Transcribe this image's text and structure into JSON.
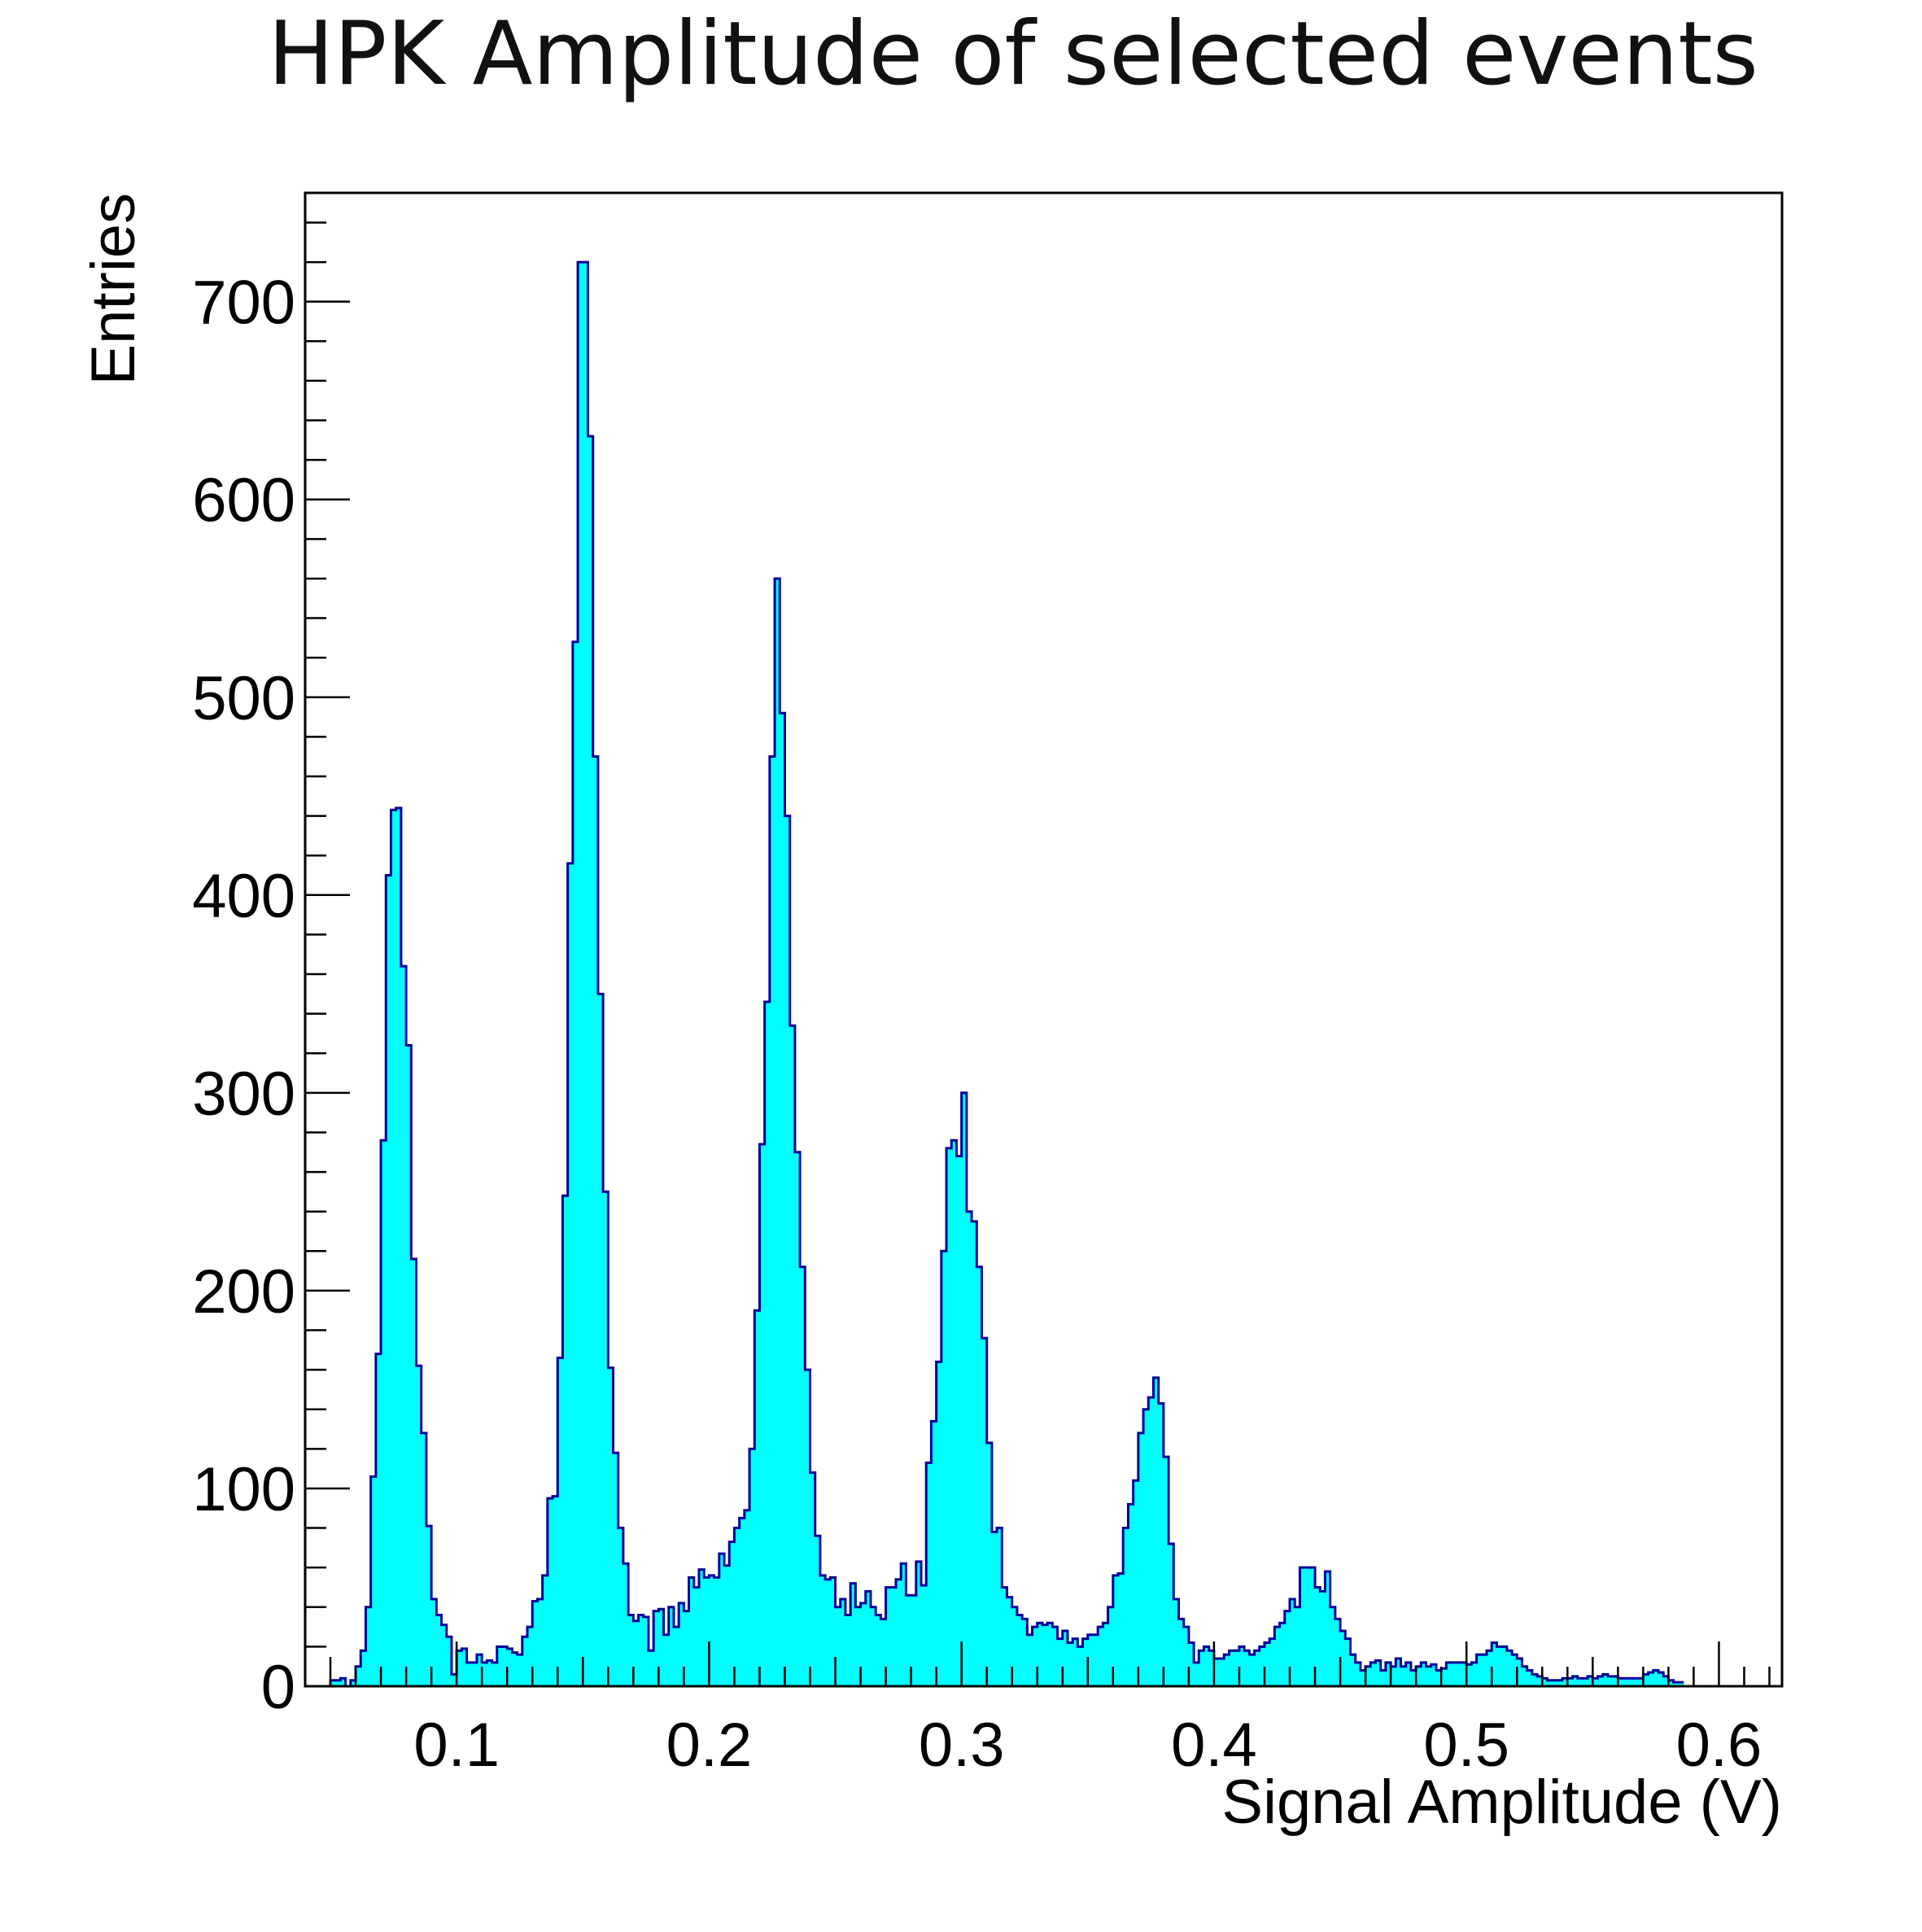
{
  "chart_data": {
    "type": "bar",
    "title": "HPK Amplitude of selected events",
    "xlabel": "Signal Amplitude (V)",
    "ylabel": "Entries",
    "xlim": [
      0.04,
      0.625
    ],
    "ylim": [
      0,
      755
    ],
    "x_ticks": [
      0.1,
      0.2,
      0.3,
      0.4,
      0.5,
      0.6
    ],
    "x_tick_labels": [
      "0.1",
      "0.2",
      "0.3",
      "0.4",
      "0.5",
      "0.6"
    ],
    "y_ticks": [
      0,
      100,
      200,
      300,
      400,
      500,
      600,
      700
    ],
    "y_tick_labels": [
      "0",
      "100",
      "200",
      "300",
      "400",
      "500",
      "600",
      "700"
    ],
    "grid": false,
    "legend": "none",
    "fill_color": "#00FFFF",
    "line_color": "#000099",
    "bin_start": 0.04,
    "bin_width": 0.002,
    "values": [
      0,
      0,
      0,
      0,
      0,
      3,
      3,
      4,
      0,
      3,
      10,
      18,
      40,
      106,
      168,
      276,
      410,
      443,
      444,
      364,
      324,
      216,
      162,
      128,
      81,
      44,
      36,
      31,
      25,
      6,
      18,
      19,
      12,
      12,
      16,
      12,
      13,
      12,
      20,
      20,
      19,
      17,
      16,
      25,
      30,
      43,
      44,
      56,
      95,
      96,
      166,
      248,
      416,
      528,
      720,
      720,
      632,
      470,
      350,
      250,
      161,
      118,
      80,
      62,
      36,
      33,
      36,
      35,
      18,
      38,
      39,
      26,
      40,
      30,
      42,
      38,
      55,
      50,
      59,
      55,
      56,
      55,
      67,
      61,
      73,
      80,
      85,
      89,
      120,
      190,
      274,
      346,
      470,
      560,
      492,
      440,
      334,
      270,
      212,
      160,
      108,
      76,
      56,
      54,
      55,
      40,
      44,
      36,
      52,
      40,
      42,
      48,
      40,
      36,
      34,
      50,
      50,
      54,
      62,
      46,
      46,
      63,
      51,
      113,
      134,
      164,
      220,
      272,
      276,
      268,
      300,
      240,
      235,
      212,
      176,
      123,
      78,
      80,
      50,
      45,
      40,
      36,
      34,
      26,
      30,
      32,
      31,
      32,
      30,
      24,
      28,
      22,
      24,
      20,
      24,
      26,
      26,
      30,
      32,
      40,
      56,
      57,
      80,
      92,
      104,
      128,
      140,
      146,
      156,
      143,
      116,
      72,
      44,
      34,
      30,
      22,
      12,
      18,
      20,
      18,
      14,
      14,
      16,
      18,
      18,
      20,
      18,
      16,
      18,
      20,
      22,
      24,
      30,
      32,
      38,
      44,
      40,
      60,
      60,
      60,
      50,
      48,
      58,
      40,
      34,
      28,
      24,
      16,
      12,
      8,
      10,
      12,
      13,
      8,
      12,
      10,
      14,
      10,
      12,
      8,
      10,
      12,
      10,
      11,
      8,
      9,
      12,
      12,
      12,
      12,
      11,
      12,
      16,
      16,
      18,
      22,
      20,
      20,
      18,
      16,
      14,
      10,
      8,
      6,
      5,
      4,
      3,
      3,
      3,
      4,
      4,
      5,
      4,
      4,
      5,
      4,
      5,
      6,
      5,
      5,
      4,
      4,
      4,
      4,
      4,
      6,
      7,
      8,
      7,
      5,
      3,
      2,
      2
    ]
  }
}
